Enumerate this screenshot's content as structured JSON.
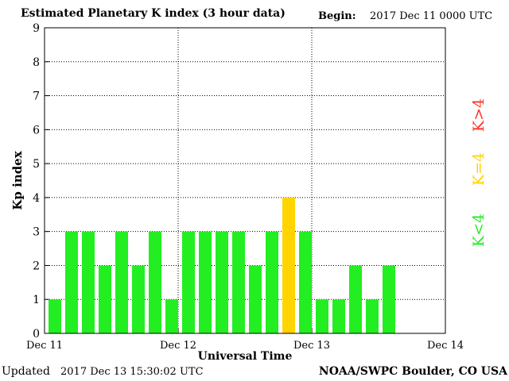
{
  "header": {
    "title": "Estimated Planetary K index (3 hour data)",
    "begin_label": "Begin:",
    "begin_value": "2017 Dec 11 0000 UTC"
  },
  "footer": {
    "updated_label": "Updated",
    "updated_value": "2017 Dec 13 15:30:02 UTC",
    "credit": "NOAA/SWPC Boulder, CO USA"
  },
  "legend": [
    {
      "label": "K<4",
      "color": "#22ee22"
    },
    {
      "label": "K=4",
      "color": "#ffd400"
    },
    {
      "label": "K>4",
      "color": "#ff3322"
    }
  ],
  "chart_data": {
    "type": "bar",
    "title": "Estimated Planetary K index (3 hour data)",
    "xlabel": "Universal Time",
    "ylabel": "Kp index",
    "ylim": [
      0,
      9
    ],
    "yticks": [
      0,
      1,
      2,
      3,
      4,
      5,
      6,
      7,
      8,
      9
    ],
    "xlim": [
      "2017-12-11 00:00",
      "2017-12-14 00:00"
    ],
    "x_tick_labels": [
      "Dec 11",
      "Dec 12",
      "Dec 13",
      "Dec 14"
    ],
    "grid": true,
    "interval_hours": 3,
    "colors": {
      "below4": "#22ee22",
      "equal4": "#ffd400",
      "above4": "#ff3322"
    },
    "x": [
      "2017-12-11 00:00",
      "2017-12-11 03:00",
      "2017-12-11 06:00",
      "2017-12-11 09:00",
      "2017-12-11 12:00",
      "2017-12-11 15:00",
      "2017-12-11 18:00",
      "2017-12-11 21:00",
      "2017-12-12 00:00",
      "2017-12-12 03:00",
      "2017-12-12 06:00",
      "2017-12-12 09:00",
      "2017-12-12 12:00",
      "2017-12-12 15:00",
      "2017-12-12 18:00",
      "2017-12-12 21:00",
      "2017-12-13 00:00",
      "2017-12-13 03:00",
      "2017-12-13 06:00",
      "2017-12-13 09:00",
      "2017-12-13 12:00"
    ],
    "values": [
      1,
      3,
      3,
      2,
      3,
      2,
      3,
      1,
      3,
      3,
      3,
      3,
      2,
      3,
      4,
      3,
      1,
      1,
      2,
      1,
      2
    ]
  }
}
